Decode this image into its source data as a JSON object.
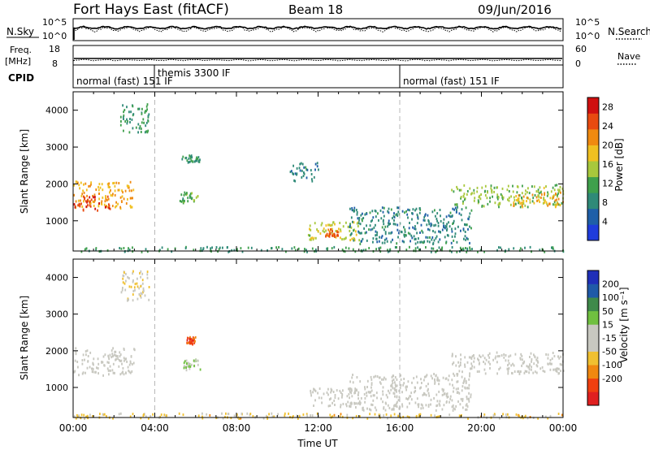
{
  "header": {
    "station": "Fort Hays East (fitACF)",
    "beam": "Beam 18",
    "date": "09/Jun/2016"
  },
  "panels": {
    "nsky": {
      "label": "N.Sky",
      "yticks": [
        "10^5",
        "10^0"
      ],
      "right_label": "N.Search",
      "right_ticks": [
        "10^5",
        "10^0"
      ]
    },
    "freq": {
      "label_top": "Freq.",
      "label_unit": "[MHz]",
      "yticks": [
        "18",
        "8"
      ],
      "right_label": "Nave",
      "right_ticks": [
        "60",
        "0"
      ]
    },
    "cpid": {
      "label": "CPID",
      "modes": [
        "normal (fast) 151 IF",
        "themis 3300 IF",
        "normal (fast) 151 IF"
      ]
    }
  },
  "colors": {
    "power": [
      "#1f3cdc",
      "#1f5fa8",
      "#2f8a78",
      "#3fa04c",
      "#a8c83c",
      "#f0c020",
      "#f08a10",
      "#e84a10",
      "#d01010"
    ],
    "velocity": [
      "#e02020",
      "#f04010",
      "#f08810",
      "#f0c030",
      "#c8c8c0",
      "#c8c8c0",
      "#70c040",
      "#3f8a4a",
      "#1f5aa8",
      "#1f2fb8"
    ],
    "dashed_line": "#b8b8b8"
  },
  "chart_data": [
    {
      "type": "heatmap",
      "name": "power",
      "ylabel": "Slant Range [km]",
      "yticks": [
        1000,
        2000,
        3000,
        4000
      ],
      "ylim": [
        180,
        4500
      ],
      "xlim": [
        0,
        24
      ],
      "colorbar": {
        "label": "Power [dB]",
        "ticks": [
          4,
          8,
          12,
          16,
          20,
          24,
          28
        ],
        "range": [
          0,
          30
        ]
      },
      "echo_regions": [
        {
          "t": [
            0.0,
            3.0
          ],
          "r": [
            1350,
            2100
          ],
          "level": 20
        },
        {
          "t": [
            0.0,
            1.8
          ],
          "r": [
            1300,
            1700
          ],
          "level": 26
        },
        {
          "t": [
            2.3,
            3.7
          ],
          "r": [
            3400,
            4200
          ],
          "level": 10
        },
        {
          "t": [
            5.2,
            6.2
          ],
          "r": [
            1500,
            1800
          ],
          "level": 12
        },
        {
          "t": [
            5.3,
            6.2
          ],
          "r": [
            2600,
            2800
          ],
          "level": 10
        },
        {
          "t": [
            10.6,
            12.0
          ],
          "r": [
            2100,
            2600
          ],
          "level": 8
        },
        {
          "t": [
            11.5,
            14.0
          ],
          "r": [
            500,
            1000
          ],
          "level": 16
        },
        {
          "t": [
            12.3,
            13.0
          ],
          "r": [
            600,
            800
          ],
          "level": 24
        },
        {
          "t": [
            13.5,
            19.5
          ],
          "r": [
            400,
            1400
          ],
          "level": 8
        },
        {
          "t": [
            18.5,
            24.0
          ],
          "r": [
            1400,
            2000
          ],
          "level": 14
        },
        {
          "t": [
            21.5,
            24.0
          ],
          "r": [
            1400,
            1800
          ],
          "level": 20
        },
        {
          "t": [
            0.0,
            24.0
          ],
          "r": [
            180,
            320
          ],
          "level": 10
        }
      ]
    },
    {
      "type": "heatmap",
      "name": "velocity",
      "ylabel": "Slant Range [km]",
      "yticks": [
        1000,
        2000,
        3000,
        4000
      ],
      "ylim": [
        180,
        4500
      ],
      "xlim": [
        0,
        24
      ],
      "xticks": [
        "00:00",
        "04:00",
        "08:00",
        "12:00",
        "16:00",
        "20:00",
        "00:00"
      ],
      "xlabel": "Time UT",
      "colorbar": {
        "label": "Velocity [m s⁻¹]",
        "ticks": [
          200,
          100,
          50,
          15,
          -15,
          -50,
          -100,
          -200
        ],
        "range": [
          -250,
          250
        ]
      },
      "echo_regions": [
        {
          "t": [
            0.0,
            3.0
          ],
          "r": [
            1350,
            2100
          ],
          "level": 0
        },
        {
          "t": [
            2.3,
            3.7
          ],
          "r": [
            3400,
            4200
          ],
          "level": -40
        },
        {
          "t": [
            5.3,
            6.2
          ],
          "r": [
            1500,
            1800
          ],
          "level": 40
        },
        {
          "t": [
            5.5,
            6.0
          ],
          "r": [
            2200,
            2400
          ],
          "level": -180
        },
        {
          "t": [
            11.5,
            14.0
          ],
          "r": [
            500,
            1000
          ],
          "level": 0
        },
        {
          "t": [
            13.5,
            19.5
          ],
          "r": [
            400,
            1400
          ],
          "level": 0
        },
        {
          "t": [
            18.5,
            24.0
          ],
          "r": [
            1400,
            2000
          ],
          "level": 0
        },
        {
          "t": [
            0.0,
            24.0
          ],
          "r": [
            180,
            320
          ],
          "level": -60
        }
      ]
    }
  ]
}
